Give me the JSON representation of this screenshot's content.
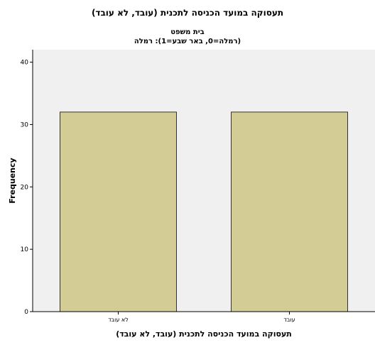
{
  "chart_data": {
    "type": "bar",
    "title": "תעסוקה במועד הכניסה לתכנית (עובד, לא עובד)",
    "panel_title": "בית משפט",
    "panel_subtitle": "(רמלה=0, באר שבע=1): רמלה",
    "xlabel": "תעסוקה במועד הכניסה לתכנית (עובד, לא עובד)",
    "ylabel": "Frequency",
    "categories": [
      "לא עובד",
      "עובד"
    ],
    "values": [
      32,
      32
    ],
    "ylim": [
      0,
      42
    ],
    "yticks": [
      0,
      10,
      20,
      30,
      40
    ],
    "grid": false,
    "colors": {
      "bar_fill": "#d3cd95",
      "bar_stroke": "#333333",
      "plot_background": "#f0f0f0"
    }
  }
}
